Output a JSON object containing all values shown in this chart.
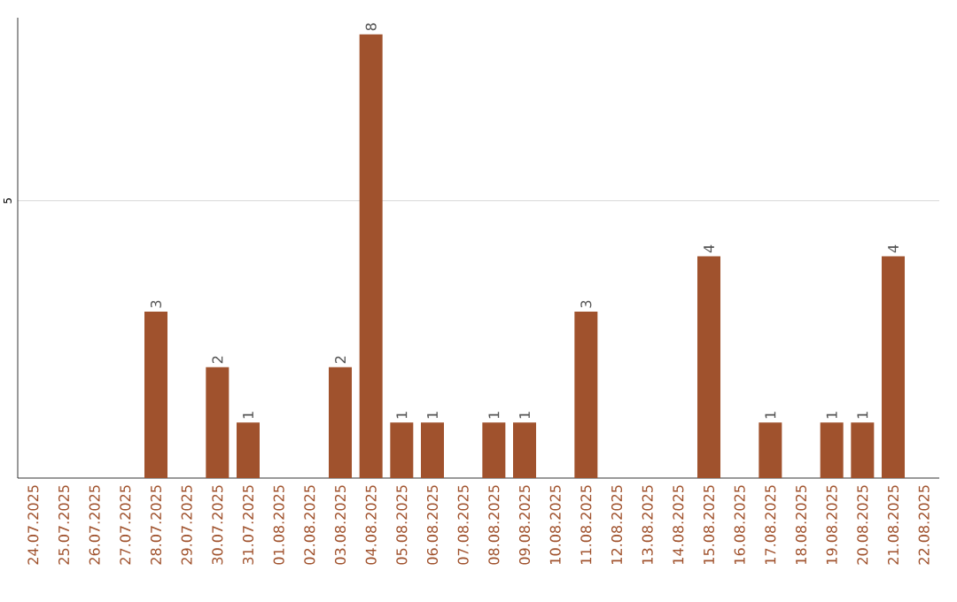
{
  "chart_data": {
    "type": "bar",
    "categories": [
      "24.07.2025",
      "25.07.2025",
      "26.07.2025",
      "27.07.2025",
      "28.07.2025",
      "29.07.2025",
      "30.07.2025",
      "31.07.2025",
      "01.08.2025",
      "02.08.2025",
      "03.08.2025",
      "04.08.2025",
      "05.08.2025",
      "06.08.2025",
      "07.08.2025",
      "08.08.2025",
      "09.08.2025",
      "10.08.2025",
      "11.08.2025",
      "12.08.2025",
      "13.08.2025",
      "14.08.2025",
      "15.08.2025",
      "16.08.2025",
      "17.08.2025",
      "18.08.2025",
      "19.08.2025",
      "20.08.2025",
      "21.08.2025",
      "22.08.2025"
    ],
    "values": [
      0,
      0,
      0,
      0,
      3,
      0,
      2,
      1,
      0,
      0,
      2,
      8,
      1,
      1,
      0,
      1,
      1,
      0,
      3,
      0,
      0,
      0,
      4,
      0,
      1,
      0,
      1,
      1,
      4,
      0
    ],
    "value_labels": [
      null,
      null,
      null,
      null,
      "3",
      null,
      "2",
      "1",
      null,
      null,
      "2",
      "8",
      "1",
      "1",
      null,
      "1",
      "1",
      null,
      "3",
      null,
      null,
      null,
      "4",
      null,
      "1",
      null,
      "1",
      "1",
      "4",
      null
    ],
    "color": "#a0522d",
    "ylim": [
      0,
      8.3
    ],
    "yticks": [
      5
    ],
    "grid": "y"
  }
}
